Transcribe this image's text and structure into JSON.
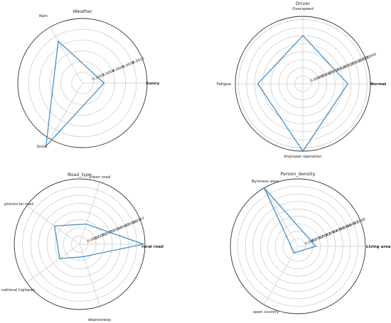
{
  "chart_data": [
    {
      "type": "radar",
      "title": "Weather",
      "categories": [
        "Sunny",
        "Rain",
        "Snow"
      ],
      "values": [
        0.0004,
        0.0009,
        0.00135
      ],
      "rmax": 0.0012,
      "ticks": [
        0.0002,
        0.0004,
        0.0006,
        0.0008,
        0.001
      ],
      "tick_labels": [
        "0.0002",
        "0.0004",
        "0.0006",
        "0.0008",
        "0.0010"
      ],
      "label_weights": [
        "bold",
        "normal",
        "normal"
      ]
    },
    {
      "type": "radar",
      "title": "Driver",
      "categories": [
        "Normal",
        "Overspeed",
        "Fatigue",
        "Improper operation"
      ],
      "values": [
        0.00028,
        0.0003,
        0.00028,
        0.00042
      ],
      "rmax": 0.00042,
      "ticks": [
        5e-05,
        0.0001,
        0.00015,
        0.0002,
        0.00025,
        0.0003,
        0.00035,
        0.0004
      ],
      "tick_labels": [
        "0.00005",
        "0.00010",
        "0.00015",
        "0.00020",
        "0.00025",
        "0.00030",
        "0.00035",
        "0.00040"
      ],
      "label_weights": [
        "bold",
        "normal",
        "normal",
        "normal"
      ]
    },
    {
      "type": "radar",
      "title": "Road_type",
      "categories": [
        "rural road",
        "urban road",
        "provincial road",
        "national highway",
        "depressway"
      ],
      "values": [
        0.00078,
        0.00026,
        0.00038,
        0.0003,
        0.00016
      ],
      "rmax": 0.0008,
      "ticks": [
        0.0001,
        0.0002,
        0.0003,
        0.0004,
        0.0005,
        0.0006,
        0.0007
      ],
      "tick_labels": [
        "0.0001",
        "0.0002",
        "0.0003",
        "0.0004",
        "0.0005",
        "0.0006",
        "0.0007"
      ],
      "label_weights": [
        "bold",
        "normal",
        "normal",
        "normal",
        "normal"
      ]
    },
    {
      "type": "radar",
      "title": "Person_density",
      "categories": [
        "Living area",
        "Bysiness area",
        "open country"
      ],
      "values": [
        0.00024,
        0.0009,
        0.0001
      ],
      "rmax": 0.0009,
      "ticks": [
        0.0001,
        0.0002,
        0.0003,
        0.0004,
        0.0005,
        0.0006,
        0.0007,
        0.0008
      ],
      "tick_labels": [
        "0.0001",
        "0.0002",
        "0.0003",
        "0.0004",
        "0.0005",
        "0.0006",
        "0.0007",
        "0.0008"
      ],
      "label_weights": [
        "bold",
        "normal",
        "normal"
      ]
    }
  ],
  "colors": {
    "series": "#3a87c2",
    "grid": "#c8c8c8",
    "frame": "#333333"
  }
}
